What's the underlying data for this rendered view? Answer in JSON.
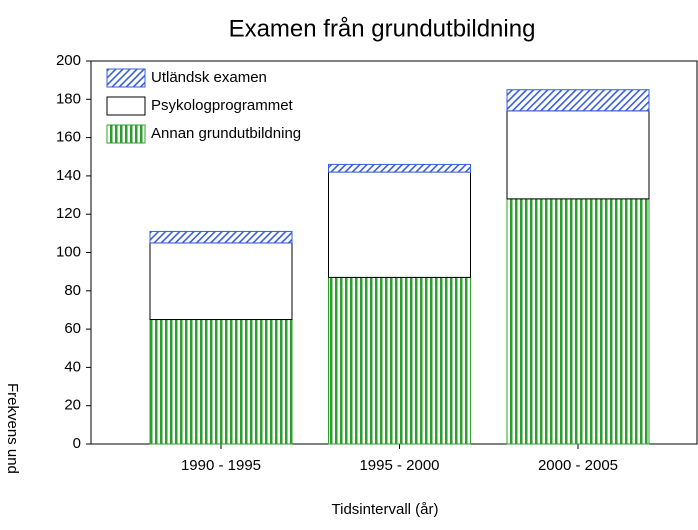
{
  "chart_data": {
    "type": "stacked_bar",
    "title": "Examen från grundutbildning",
    "xlabel": "Tidsintervall (år)",
    "ylabel": "Frekvens und",
    "categories": [
      "1990 - 1995",
      "1995 - 2000",
      "2000 - 2005"
    ],
    "series": [
      {
        "name": "Annan grundutbildning",
        "color": "#2ca02c",
        "values": [
          65,
          87,
          128
        ]
      },
      {
        "name": "Psykologprogrammet",
        "color": "#ffffff",
        "values": [
          40,
          55,
          46
        ]
      },
      {
        "name": "Utländsk examen",
        "color": "#3a5fd9",
        "values": [
          6,
          4,
          11
        ]
      }
    ],
    "ylim": [
      0,
      200
    ],
    "yticks": [
      0,
      20,
      40,
      60,
      80,
      100,
      120,
      140,
      160,
      180,
      200
    ],
    "legend": "upper left"
  }
}
